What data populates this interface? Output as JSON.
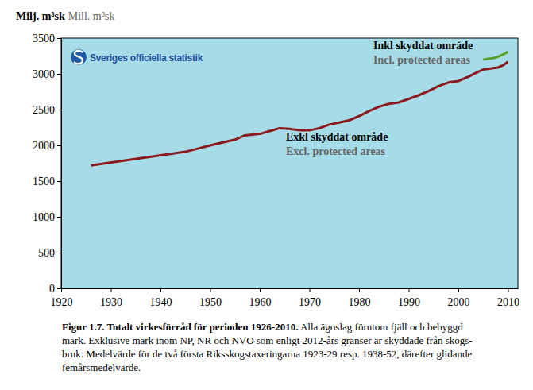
{
  "chart_data": {
    "type": "line",
    "y_unit": "Milj. m³sk",
    "y_unit_en": "Mill. m³sk",
    "logo_text": "Sveriges officiella statistik",
    "title": "Figur 1.7. Totalt virkesförråd för perioden 1926-2010.",
    "caption": [
      " Alla ägoslag förutom fjäll och bebyggd",
      "mark. Exklusive mark inom NP, NR och NVO som enligt 2012-års gränser är skyddade från skogs-",
      "bruk. Medelvärde för de två första Riksskogstaxeringarna 1923-29 resp. 1938-52, därefter glidande",
      "femårsmedelvärde."
    ],
    "x": [
      1926,
      1945,
      1950,
      1955,
      1957,
      1960,
      1962,
      1964,
      1966,
      1968,
      1970,
      1972,
      1974,
      1976,
      1978,
      1980,
      1982,
      1984,
      1986,
      1988,
      1990,
      1992,
      1994,
      1996,
      1998,
      2000,
      2002,
      2004,
      2005,
      2006,
      2007,
      2008,
      2009,
      2010
    ],
    "series": [
      {
        "name": "Exkl skyddat område",
        "name_en": "Excl. protected areas",
        "color": "#8b1a1f",
        "values": [
          1720,
          1910,
          2000,
          2080,
          2140,
          2160,
          2200,
          2240,
          2230,
          2210,
          2210,
          2240,
          2290,
          2320,
          2350,
          2410,
          2480,
          2540,
          2580,
          2600,
          2650,
          2700,
          2760,
          2830,
          2880,
          2900,
          2960,
          3030,
          3060,
          3070,
          3080,
          3090,
          3120,
          3170
        ]
      },
      {
        "name": "Inkl skyddat område",
        "name_en": "Incl. protected areas",
        "color": "#5a9e2e",
        "values": [
          null,
          null,
          null,
          null,
          null,
          null,
          null,
          null,
          null,
          null,
          null,
          null,
          null,
          null,
          null,
          null,
          null,
          null,
          null,
          null,
          null,
          null,
          null,
          null,
          null,
          null,
          null,
          null,
          3200,
          3210,
          3220,
          3240,
          3270,
          3310
        ]
      }
    ],
    "xlim": [
      1920,
      2012
    ],
    "xticks": [
      1920,
      1930,
      1940,
      1950,
      1960,
      1970,
      1980,
      1990,
      2000,
      2010
    ],
    "ylim": [
      0,
      3500
    ],
    "yticks": [
      0,
      500,
      1000,
      1500,
      2000,
      2500,
      3000,
      3500
    ],
    "grid": false
  }
}
